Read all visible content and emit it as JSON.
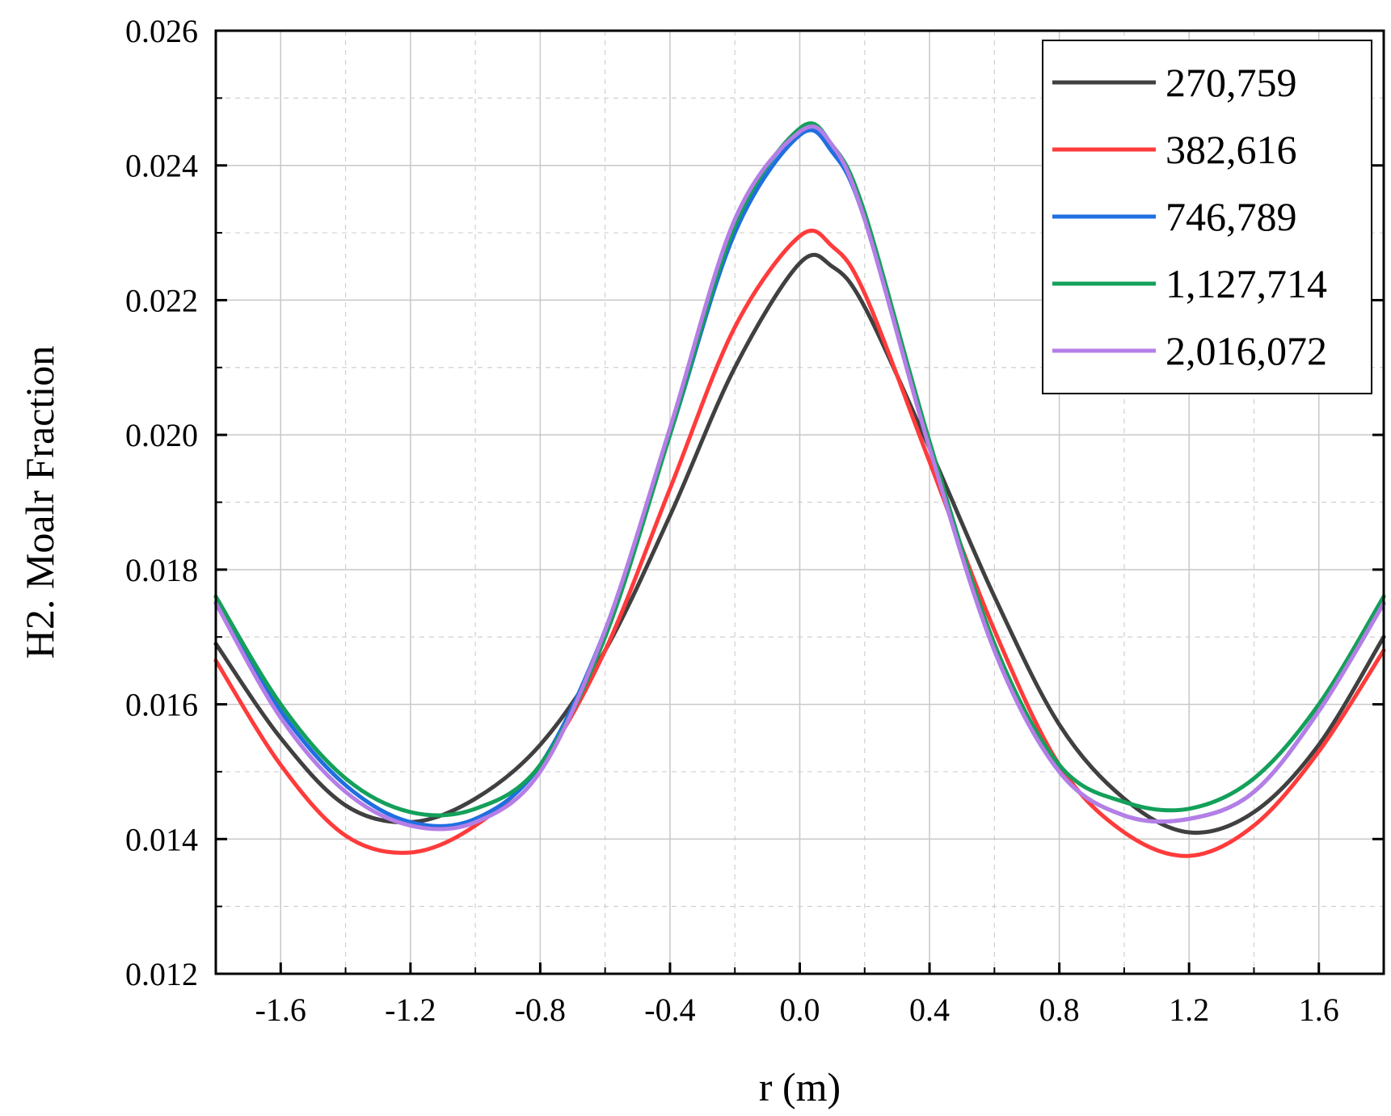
{
  "chart_data": {
    "type": "line",
    "title": "",
    "xlabel": "r (m)",
    "ylabel": "H2. Moalr Fraction",
    "xlim": [
      -1.8,
      1.8
    ],
    "ylim": [
      0.012,
      0.026
    ],
    "xticks": [
      -1.6,
      -1.2,
      -0.8,
      -0.4,
      0.0,
      0.4,
      0.8,
      1.2,
      1.6
    ],
    "xtick_labels": [
      "-1.6",
      "-1.2",
      "-0.8",
      "-0.4",
      "0.0",
      "0.4",
      "0.8",
      "1.2",
      "1.6"
    ],
    "yticks": [
      0.012,
      0.014,
      0.016,
      0.018,
      0.02,
      0.022,
      0.024,
      0.026
    ],
    "ytick_labels": [
      "0.012",
      "0.014",
      "0.016",
      "0.018",
      "0.020",
      "0.022",
      "0.024",
      "0.026"
    ],
    "grid": true,
    "legend_position": "top-right",
    "series": [
      {
        "name": "270,759",
        "color": "#404040",
        "x": [
          -1.8,
          -1.6,
          -1.4,
          -1.2,
          -1.0,
          -0.8,
          -0.6,
          -0.4,
          -0.2,
          0.0,
          0.1,
          0.2,
          0.4,
          0.6,
          0.8,
          1.0,
          1.2,
          1.4,
          1.6,
          1.8
        ],
        "y": [
          0.0169,
          0.0155,
          0.0145,
          0.01425,
          0.0146,
          0.0154,
          0.0168,
          0.0188,
          0.021,
          0.02255,
          0.0225,
          0.0219,
          0.0198,
          0.0176,
          0.0157,
          0.0146,
          0.0141,
          0.0144,
          0.0154,
          0.017
        ]
      },
      {
        "name": "382,616",
        "color": "#ff3b3b",
        "x": [
          -1.8,
          -1.6,
          -1.4,
          -1.2,
          -1.0,
          -0.8,
          -0.6,
          -0.4,
          -0.2,
          0.0,
          0.1,
          0.2,
          0.4,
          0.6,
          0.8,
          1.0,
          1.2,
          1.4,
          1.6,
          1.8
        ],
        "y": [
          0.01665,
          0.0151,
          0.01405,
          0.0138,
          0.0142,
          0.0151,
          0.0168,
          0.0192,
          0.0216,
          0.02295,
          0.0228,
          0.0221,
          0.0196,
          0.0171,
          0.0151,
          0.0141,
          0.01375,
          0.0142,
          0.0153,
          0.0168
        ]
      },
      {
        "name": "746,789",
        "color": "#1f6fe0",
        "x": [
          -1.8,
          -1.6,
          -1.4,
          -1.2,
          -1.0,
          -0.8,
          -0.6,
          -0.4,
          -0.2,
          0.0,
          0.1,
          0.2,
          0.4,
          0.6,
          0.8,
          1.0,
          1.2,
          1.4,
          1.6,
          1.8
        ],
        "y": [
          0.0175,
          0.0159,
          0.0148,
          0.01425,
          0.0143,
          0.0151,
          0.0171,
          0.02,
          0.023,
          0.02445,
          0.0242,
          0.0232,
          0.0198,
          0.0168,
          0.015,
          0.01435,
          0.0143,
          0.0147,
          0.0159,
          0.0175
        ]
      },
      {
        "name": "1,127,714",
        "color": "#14a05a",
        "x": [
          -1.8,
          -1.6,
          -1.4,
          -1.2,
          -1.0,
          -0.8,
          -0.6,
          -0.4,
          -0.2,
          0.0,
          0.1,
          0.2,
          0.4,
          0.6,
          0.8,
          1.0,
          1.2,
          1.4,
          1.6,
          1.8
        ],
        "y": [
          0.0176,
          0.016,
          0.0149,
          0.0144,
          0.01445,
          0.0151,
          0.017,
          0.02,
          0.0231,
          0.02455,
          0.0243,
          0.0233,
          0.0199,
          0.0169,
          0.0151,
          0.01455,
          0.01445,
          0.0149,
          0.016,
          0.0176
        ]
      },
      {
        "name": "2,016,072",
        "color": "#b57ee6",
        "x": [
          -1.8,
          -1.6,
          -1.4,
          -1.2,
          -1.0,
          -0.8,
          -0.6,
          -0.4,
          -0.2,
          0.0,
          0.1,
          0.2,
          0.4,
          0.6,
          0.8,
          1.0,
          1.2,
          1.4,
          1.6,
          1.8
        ],
        "y": [
          0.0175,
          0.0158,
          0.0147,
          0.0142,
          0.01425,
          0.015,
          0.0171,
          0.0201,
          0.0232,
          0.0245,
          0.0243,
          0.0232,
          0.0198,
          0.0168,
          0.015,
          0.01435,
          0.0143,
          0.0147,
          0.0159,
          0.0175
        ]
      }
    ]
  }
}
